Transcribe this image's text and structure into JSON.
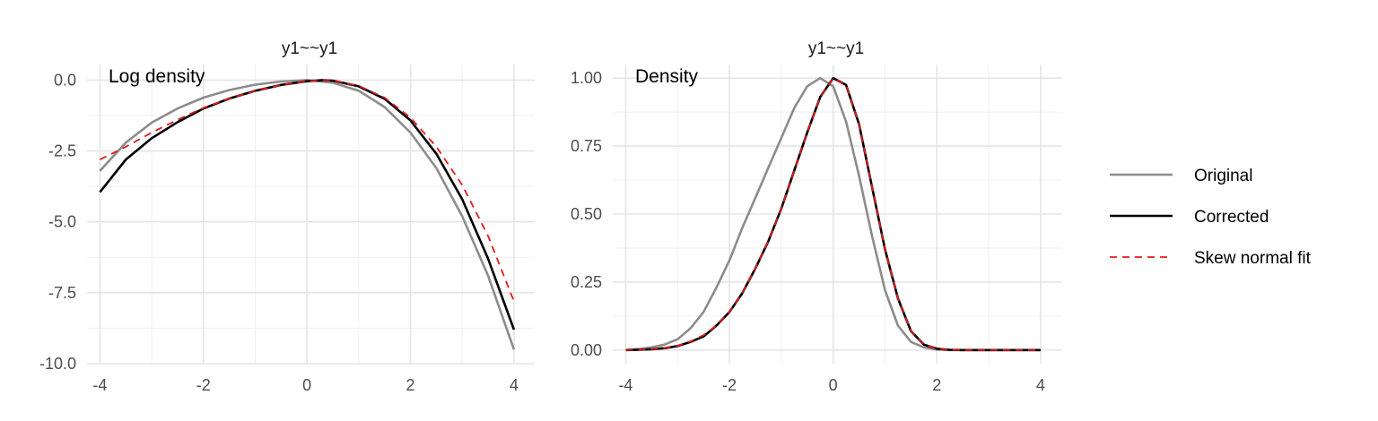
{
  "chart_data": [
    {
      "type": "line",
      "title": "y1~~y1",
      "annotation": "Log density",
      "xlim": [
        -4.25,
        4.4
      ],
      "ylim": [
        -10.0,
        0.55
      ],
      "x_ticks": [
        -4,
        -2,
        0,
        2,
        4
      ],
      "x_tick_labels": [
        "-4",
        "-2",
        "0",
        "2",
        "4"
      ],
      "y_ticks": [
        -10.0,
        -7.5,
        -5.0,
        -2.5,
        0.0
      ],
      "y_tick_labels": [
        "-10.0",
        "-7.5",
        "-5.0",
        "-2.5",
        "0.0"
      ],
      "grid": true,
      "series": [
        {
          "name": "Original",
          "x": [
            -4,
            -3.5,
            -3,
            -2.5,
            -2,
            -1.5,
            -1,
            -0.5,
            0,
            0.5,
            1,
            1.5,
            2,
            2.5,
            3,
            3.5,
            4
          ],
          "y": [
            -3.2,
            -2.2,
            -1.5,
            -1.0,
            -0.62,
            -0.35,
            -0.16,
            -0.05,
            0.0,
            -0.09,
            -0.38,
            -0.95,
            -1.85,
            -3.1,
            -4.8,
            -6.9,
            -9.5
          ]
        },
        {
          "name": "Corrected",
          "x": [
            -4,
            -3.5,
            -3,
            -2.5,
            -2,
            -1.5,
            -1,
            -0.5,
            0,
            0.3,
            0.5,
            1,
            1.5,
            2,
            2.5,
            3,
            3.5,
            4
          ],
          "y": [
            -3.95,
            -2.8,
            -2.05,
            -1.48,
            -1.0,
            -0.65,
            -0.38,
            -0.17,
            -0.04,
            0.0,
            -0.02,
            -0.22,
            -0.66,
            -1.42,
            -2.6,
            -4.2,
            -6.3,
            -8.8
          ]
        },
        {
          "name": "Skew normal fit",
          "x": [
            -4,
            -3.5,
            -3,
            -2.5,
            -2,
            -1.5,
            -1,
            -0.5,
            0,
            0.3,
            0.5,
            1,
            1.5,
            2,
            2.5,
            3,
            3.5,
            4
          ],
          "y": [
            -2.8,
            -2.35,
            -1.85,
            -1.4,
            -0.98,
            -0.65,
            -0.38,
            -0.17,
            -0.04,
            0.0,
            -0.02,
            -0.2,
            -0.62,
            -1.32,
            -2.35,
            -3.7,
            -5.5,
            -7.8
          ]
        }
      ]
    },
    {
      "type": "line",
      "title": "y1~~y1",
      "annotation": "Density",
      "xlim": [
        -4.25,
        4.4
      ],
      "ylim": [
        -0.05,
        1.05
      ],
      "x_ticks": [
        -4,
        -2,
        0,
        2,
        4
      ],
      "x_tick_labels": [
        "-4",
        "-2",
        "0",
        "2",
        "4"
      ],
      "y_ticks": [
        0.0,
        0.25,
        0.5,
        0.75,
        1.0
      ],
      "y_tick_labels": [
        "0.00",
        "0.25",
        "0.50",
        "0.75",
        "1.00"
      ],
      "grid": true,
      "series": [
        {
          "name": "Original",
          "x": [
            -4,
            -3.75,
            -3.5,
            -3.25,
            -3,
            -2.75,
            -2.5,
            -2.25,
            -2,
            -1.75,
            -1.5,
            -1.25,
            -1,
            -0.75,
            -0.5,
            -0.25,
            0,
            0.25,
            0.5,
            0.75,
            1,
            1.25,
            1.5,
            1.75,
            2,
            2.25,
            2.5,
            2.75,
            3,
            3.25,
            3.5,
            3.75,
            4
          ],
          "y": [
            0.0,
            0.004,
            0.01,
            0.02,
            0.04,
            0.08,
            0.14,
            0.23,
            0.33,
            0.45,
            0.56,
            0.67,
            0.78,
            0.89,
            0.97,
            1.0,
            0.97,
            0.84,
            0.64,
            0.42,
            0.22,
            0.09,
            0.03,
            0.01,
            0.002,
            0.0,
            0.0,
            0.0,
            0.0,
            0.0,
            0.0,
            0.0,
            0.0
          ]
        },
        {
          "name": "Corrected",
          "x": [
            -4,
            -3.75,
            -3.5,
            -3.25,
            -3,
            -2.75,
            -2.5,
            -2.25,
            -2,
            -1.75,
            -1.5,
            -1.25,
            -1,
            -0.75,
            -0.5,
            -0.25,
            0,
            0.25,
            0.5,
            0.75,
            1,
            1.25,
            1.5,
            1.75,
            2,
            2.25,
            2.5,
            2.75,
            3,
            3.25,
            3.5,
            3.75,
            4
          ],
          "y": [
            0.0,
            0.001,
            0.003,
            0.007,
            0.015,
            0.03,
            0.05,
            0.09,
            0.14,
            0.21,
            0.3,
            0.4,
            0.52,
            0.66,
            0.8,
            0.93,
            1.0,
            0.975,
            0.83,
            0.6,
            0.37,
            0.19,
            0.07,
            0.02,
            0.005,
            0.001,
            0.0,
            0.0,
            0.0,
            0.0,
            0.0,
            0.0,
            0.0
          ]
        },
        {
          "name": "Skew normal fit",
          "x": [
            -4,
            -3.75,
            -3.5,
            -3.25,
            -3,
            -2.75,
            -2.5,
            -2.25,
            -2,
            -1.75,
            -1.5,
            -1.25,
            -1,
            -0.75,
            -0.5,
            -0.25,
            0,
            0.25,
            0.5,
            0.75,
            1,
            1.25,
            1.5,
            1.75,
            2,
            2.25,
            2.5,
            2.75,
            3,
            3.25,
            3.5,
            3.75,
            4
          ],
          "y": [
            0.0,
            0.001,
            0.003,
            0.008,
            0.016,
            0.032,
            0.055,
            0.09,
            0.14,
            0.21,
            0.3,
            0.4,
            0.52,
            0.66,
            0.8,
            0.93,
            1.0,
            0.975,
            0.83,
            0.6,
            0.37,
            0.19,
            0.07,
            0.02,
            0.005,
            0.001,
            0.0,
            0.0,
            0.0,
            0.0,
            0.0,
            0.0,
            0.0
          ]
        }
      ]
    }
  ],
  "legend": {
    "placement": "right",
    "entries": [
      {
        "label": "Original",
        "color": "#8c8c8c",
        "style": "solid"
      },
      {
        "label": "Corrected",
        "color": "#000000",
        "style": "solid"
      },
      {
        "label": "Skew normal fit",
        "color": "#e41a1c",
        "style": "dashed"
      }
    ]
  }
}
